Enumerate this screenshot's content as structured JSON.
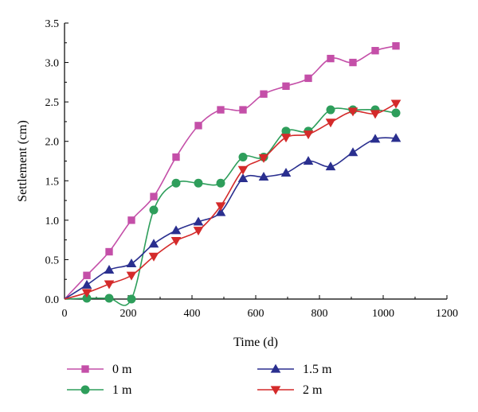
{
  "chart_data": {
    "type": "line",
    "title": "",
    "xlabel": "Time (d)",
    "ylabel": "Settlement (cm)",
    "xlim": [
      0,
      1200
    ],
    "ylim": [
      0,
      3.5
    ],
    "xticks": [
      0,
      200,
      400,
      600,
      800,
      1000,
      1200
    ],
    "yticks": [
      0.0,
      0.5,
      1.0,
      1.5,
      2.0,
      2.5,
      3.0,
      3.5
    ],
    "xtick_labels": [
      "0",
      "200",
      "400",
      "600",
      "800",
      "1000",
      "1200"
    ],
    "ytick_labels": [
      "0.0",
      "0.5",
      "1.0",
      "1.5",
      "2.0",
      "2.5",
      "3.0",
      "3.5"
    ],
    "grid": false,
    "legend_position": "bottom",
    "series": [
      {
        "name": "0 m",
        "color": "#c44fa8",
        "marker": "square",
        "x": [
          0,
          70,
          140,
          210,
          280,
          350,
          420,
          490,
          560,
          625,
          695,
          765,
          835,
          905,
          975,
          1040
        ],
        "y": [
          0.0,
          0.3,
          0.6,
          1.0,
          1.3,
          1.8,
          2.2,
          2.4,
          2.4,
          2.6,
          2.7,
          2.8,
          3.05,
          3.0,
          3.15,
          3.21
        ]
      },
      {
        "name": "1 m",
        "color": "#2e9e5b",
        "marker": "circle",
        "x": [
          0,
          70,
          140,
          210,
          280,
          350,
          420,
          490,
          560,
          625,
          695,
          765,
          835,
          905,
          975,
          1040
        ],
        "y": [
          0.0,
          0.01,
          0.01,
          0.0,
          1.13,
          1.47,
          1.47,
          1.47,
          1.8,
          1.8,
          2.13,
          2.13,
          2.4,
          2.4,
          2.4,
          2.36
        ]
      },
      {
        "name": "1.5 m",
        "color": "#2a2f8f",
        "marker": "triangle-up",
        "x": [
          0,
          70,
          140,
          210,
          280,
          350,
          420,
          490,
          560,
          625,
          695,
          765,
          835,
          905,
          975,
          1040
        ],
        "y": [
          0.0,
          0.18,
          0.37,
          0.45,
          0.7,
          0.87,
          0.98,
          1.1,
          1.53,
          1.55,
          1.6,
          1.75,
          1.68,
          1.86,
          2.03,
          2.04
        ]
      },
      {
        "name": "2 m",
        "color": "#d42a2a",
        "marker": "triangle-down",
        "x": [
          0,
          70,
          140,
          210,
          280,
          350,
          420,
          490,
          560,
          625,
          695,
          765,
          835,
          905,
          975,
          1040
        ],
        "y": [
          0.0,
          0.08,
          0.19,
          0.3,
          0.54,
          0.74,
          0.87,
          1.18,
          1.64,
          1.79,
          2.05,
          2.09,
          2.24,
          2.38,
          2.35,
          2.48
        ]
      }
    ]
  }
}
